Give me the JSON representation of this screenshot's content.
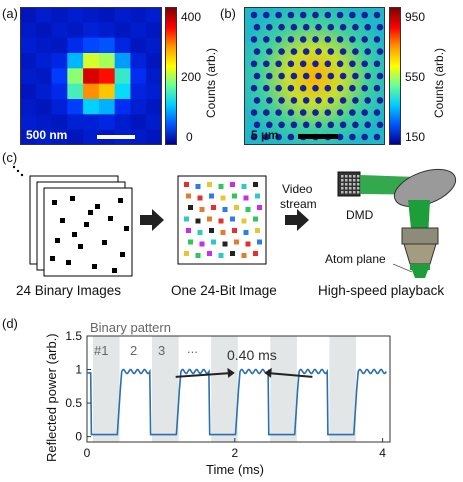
{
  "panel_a": {
    "label": "(a)",
    "scalebar": "500 nm",
    "colorbar": {
      "ticks": [
        "400",
        "200",
        "0"
      ],
      "title": "Counts (arb.)"
    }
  },
  "panel_b": {
    "label": "(b)",
    "scalebar": "5 µm",
    "colorbar": {
      "ticks": [
        "950",
        "550",
        "150"
      ],
      "title": "Counts (arb.)"
    }
  },
  "panel_c": {
    "label": "(c)",
    "caption_binary": "24 Binary Images",
    "caption_24bit": "One 24-Bit Image",
    "caption_playback": "High-speed playback",
    "video_stream_line1": "Video",
    "video_stream_line2": "stream",
    "dmd_label": "DMD",
    "atom_plane_label": "Atom plane"
  },
  "panel_d": {
    "label": "(d)",
    "legend_title": "Binary pattern",
    "pattern_labels": [
      "#1",
      "2",
      "3",
      "..."
    ],
    "duration_label": "0.40 ms"
  },
  "chart_data": {
    "type": "line",
    "title": "",
    "xlabel": "Time (ms)",
    "ylabel": "Reflected power (arb.)",
    "xlim": [
      0,
      4.1
    ],
    "ylim": [
      -0.08,
      1.5
    ],
    "xticks": [
      "0",
      "2",
      "4"
    ],
    "yticks": [
      "0",
      "0.5",
      "1",
      "1.5"
    ],
    "shaded_intervals_ms": [
      [
        0.08,
        0.44
      ],
      [
        0.88,
        1.24
      ],
      [
        1.68,
        2.04
      ],
      [
        2.48,
        2.84
      ],
      [
        3.28,
        3.64
      ]
    ],
    "series": [
      {
        "color": "#2a6fb0",
        "x": [
          0,
          0.05,
          0.06,
          0.41,
          0.45,
          0.47,
          0.85,
          0.86,
          1.21,
          1.25,
          1.27,
          1.65,
          1.66,
          2.01,
          2.05,
          2.07,
          2.45,
          2.46,
          2.81,
          2.85,
          2.87,
          3.25,
          3.26,
          3.61,
          3.65,
          3.67,
          4.05
        ],
        "y": [
          0.95,
          0.95,
          0.03,
          0.03,
          0.7,
          0.97,
          0.97,
          0.03,
          0.03,
          0.7,
          0.97,
          0.97,
          0.03,
          0.03,
          0.7,
          0.97,
          0.97,
          0.03,
          0.03,
          0.7,
          0.97,
          0.97,
          0.03,
          0.03,
          0.7,
          0.97,
          0.97
        ]
      }
    ]
  },
  "colors": {
    "shade": "#e3e6e6",
    "trace": "#2a6fb0",
    "dmd_beam": "#1e9e3a",
    "arrow": "#222222"
  }
}
